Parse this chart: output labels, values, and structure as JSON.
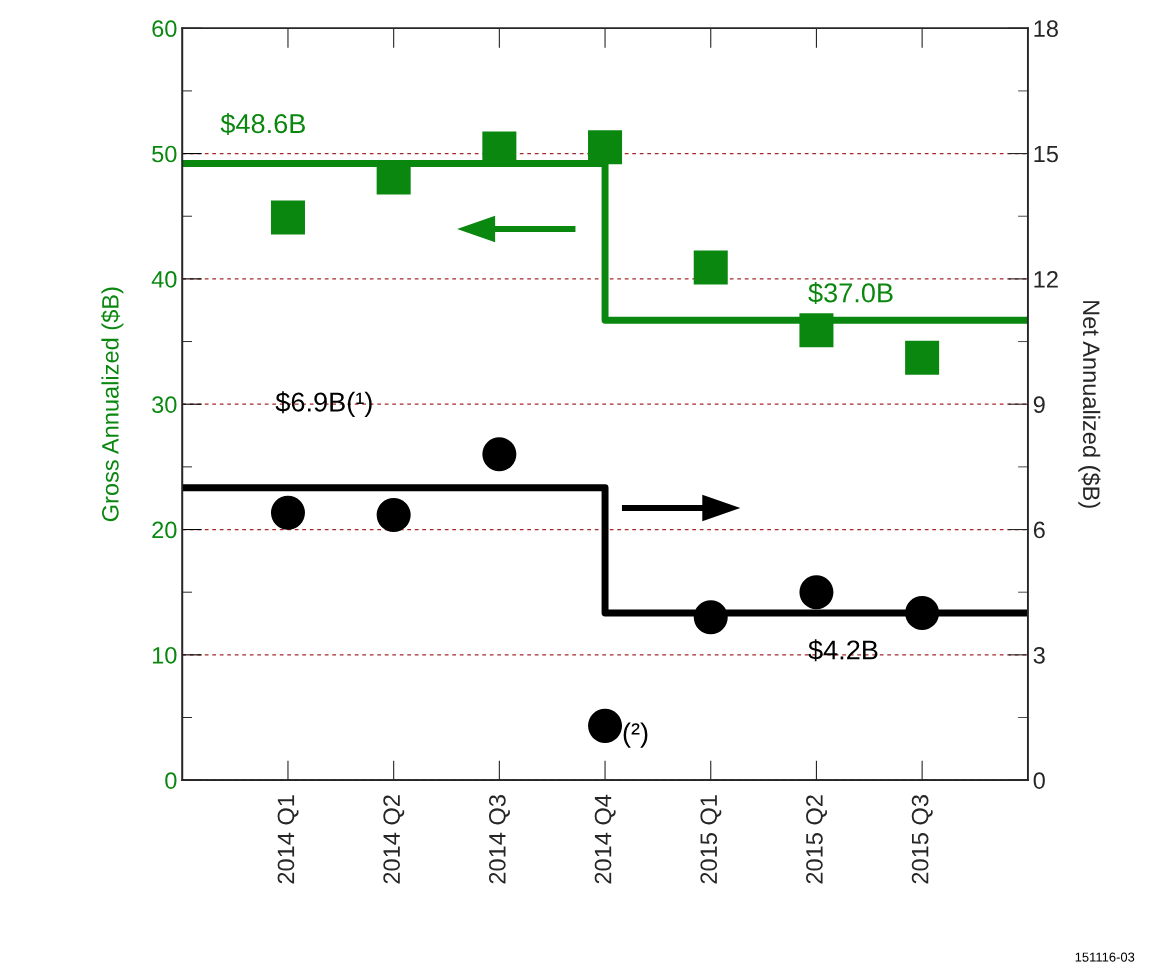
{
  "chart_data": {
    "type": "scatter",
    "categories": [
      null,
      "2014 Q1",
      "2014 Q2",
      "2014 Q3",
      "2014 Q4",
      "2015 Q1",
      "2015 Q2",
      "2015 Q3",
      null
    ],
    "ylabel": "Gross Annualized ($B)",
    "y2label": "Net Annualized ($B)",
    "series": [
      {
        "type": "step",
        "color": "#0a870f",
        "values": [
          49.2,
          49.2,
          49.2,
          49.2,
          36.7,
          36.7,
          36.7,
          36.7,
          36.7
        ]
      },
      {
        "marker": "square",
        "color": "#0a870f",
        "values": [
          null,
          44.9,
          48.1,
          50.4,
          50.5,
          40.9,
          35.9,
          33.7,
          null
        ]
      },
      {
        "type": "step",
        "axis": "y2",
        "color": "#000000",
        "values": [
          7.0,
          7.0,
          7.0,
          7.0,
          4.0,
          4.0,
          4.0,
          4.0,
          4.0
        ]
      },
      {
        "axis": "y2",
        "marker": "circle",
        "color": "#000000",
        "values": [
          null,
          6.4,
          6.35,
          7.8,
          1.3,
          3.9,
          4.5,
          4.0,
          null
        ]
      }
    ],
    "ylim": [
      0,
      60
    ],
    "yticks": [
      0,
      10,
      20,
      30,
      40,
      50,
      60
    ],
    "y2lim": [
      0,
      18
    ],
    "y2ticks": [
      0,
      3,
      6,
      9,
      12,
      15,
      18
    ],
    "grid": "y",
    "annotations": [
      "$48.6B",
      "$37.0B",
      "$6.9B(¹)",
      "$4.2B",
      "(²)",
      "151116-03"
    ]
  }
}
